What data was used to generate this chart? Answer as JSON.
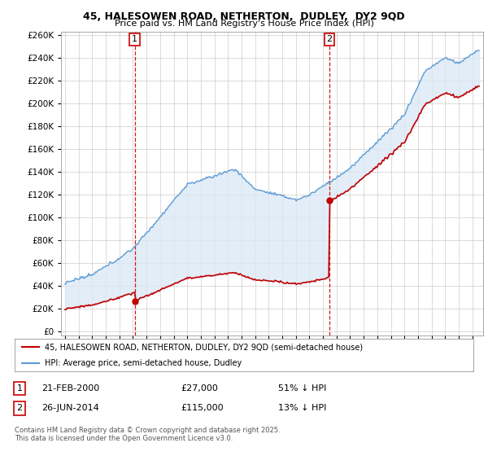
{
  "title_line1": "45, HALESOWEN ROAD, NETHERTON,  DUDLEY,  DY2 9QD",
  "title_line2": "Price paid vs. HM Land Registry's House Price Index (HPI)",
  "hpi_color": "#5b9bd5",
  "hpi_fill_color": "#dce9f5",
  "price_color": "#c00000",
  "vline_color": "#cc0000",
  "marker1_year": 2000.13,
  "marker1_price": 27000,
  "marker2_year": 2014.48,
  "marker2_price": 115000,
  "legend_label_red": "45, HALESOWEN ROAD, NETHERTON, DUDLEY, DY2 9QD (semi-detached house)",
  "legend_label_blue": "HPI: Average price, semi-detached house, Dudley",
  "note1_date": "21-FEB-2000",
  "note1_price": "£27,000",
  "note1_hpi": "51% ↓ HPI",
  "note2_date": "26-JUN-2014",
  "note2_price": "£115,000",
  "note2_hpi": "13% ↓ HPI",
  "footer": "Contains HM Land Registry data © Crown copyright and database right 2025.\nThis data is licensed under the Open Government Licence v3.0.",
  "background_color": "#ffffff",
  "grid_color": "#cccccc",
  "ylim_max": 260000,
  "yticks": [
    0,
    20000,
    40000,
    60000,
    80000,
    100000,
    120000,
    140000,
    160000,
    180000,
    200000,
    220000,
    240000,
    260000
  ]
}
